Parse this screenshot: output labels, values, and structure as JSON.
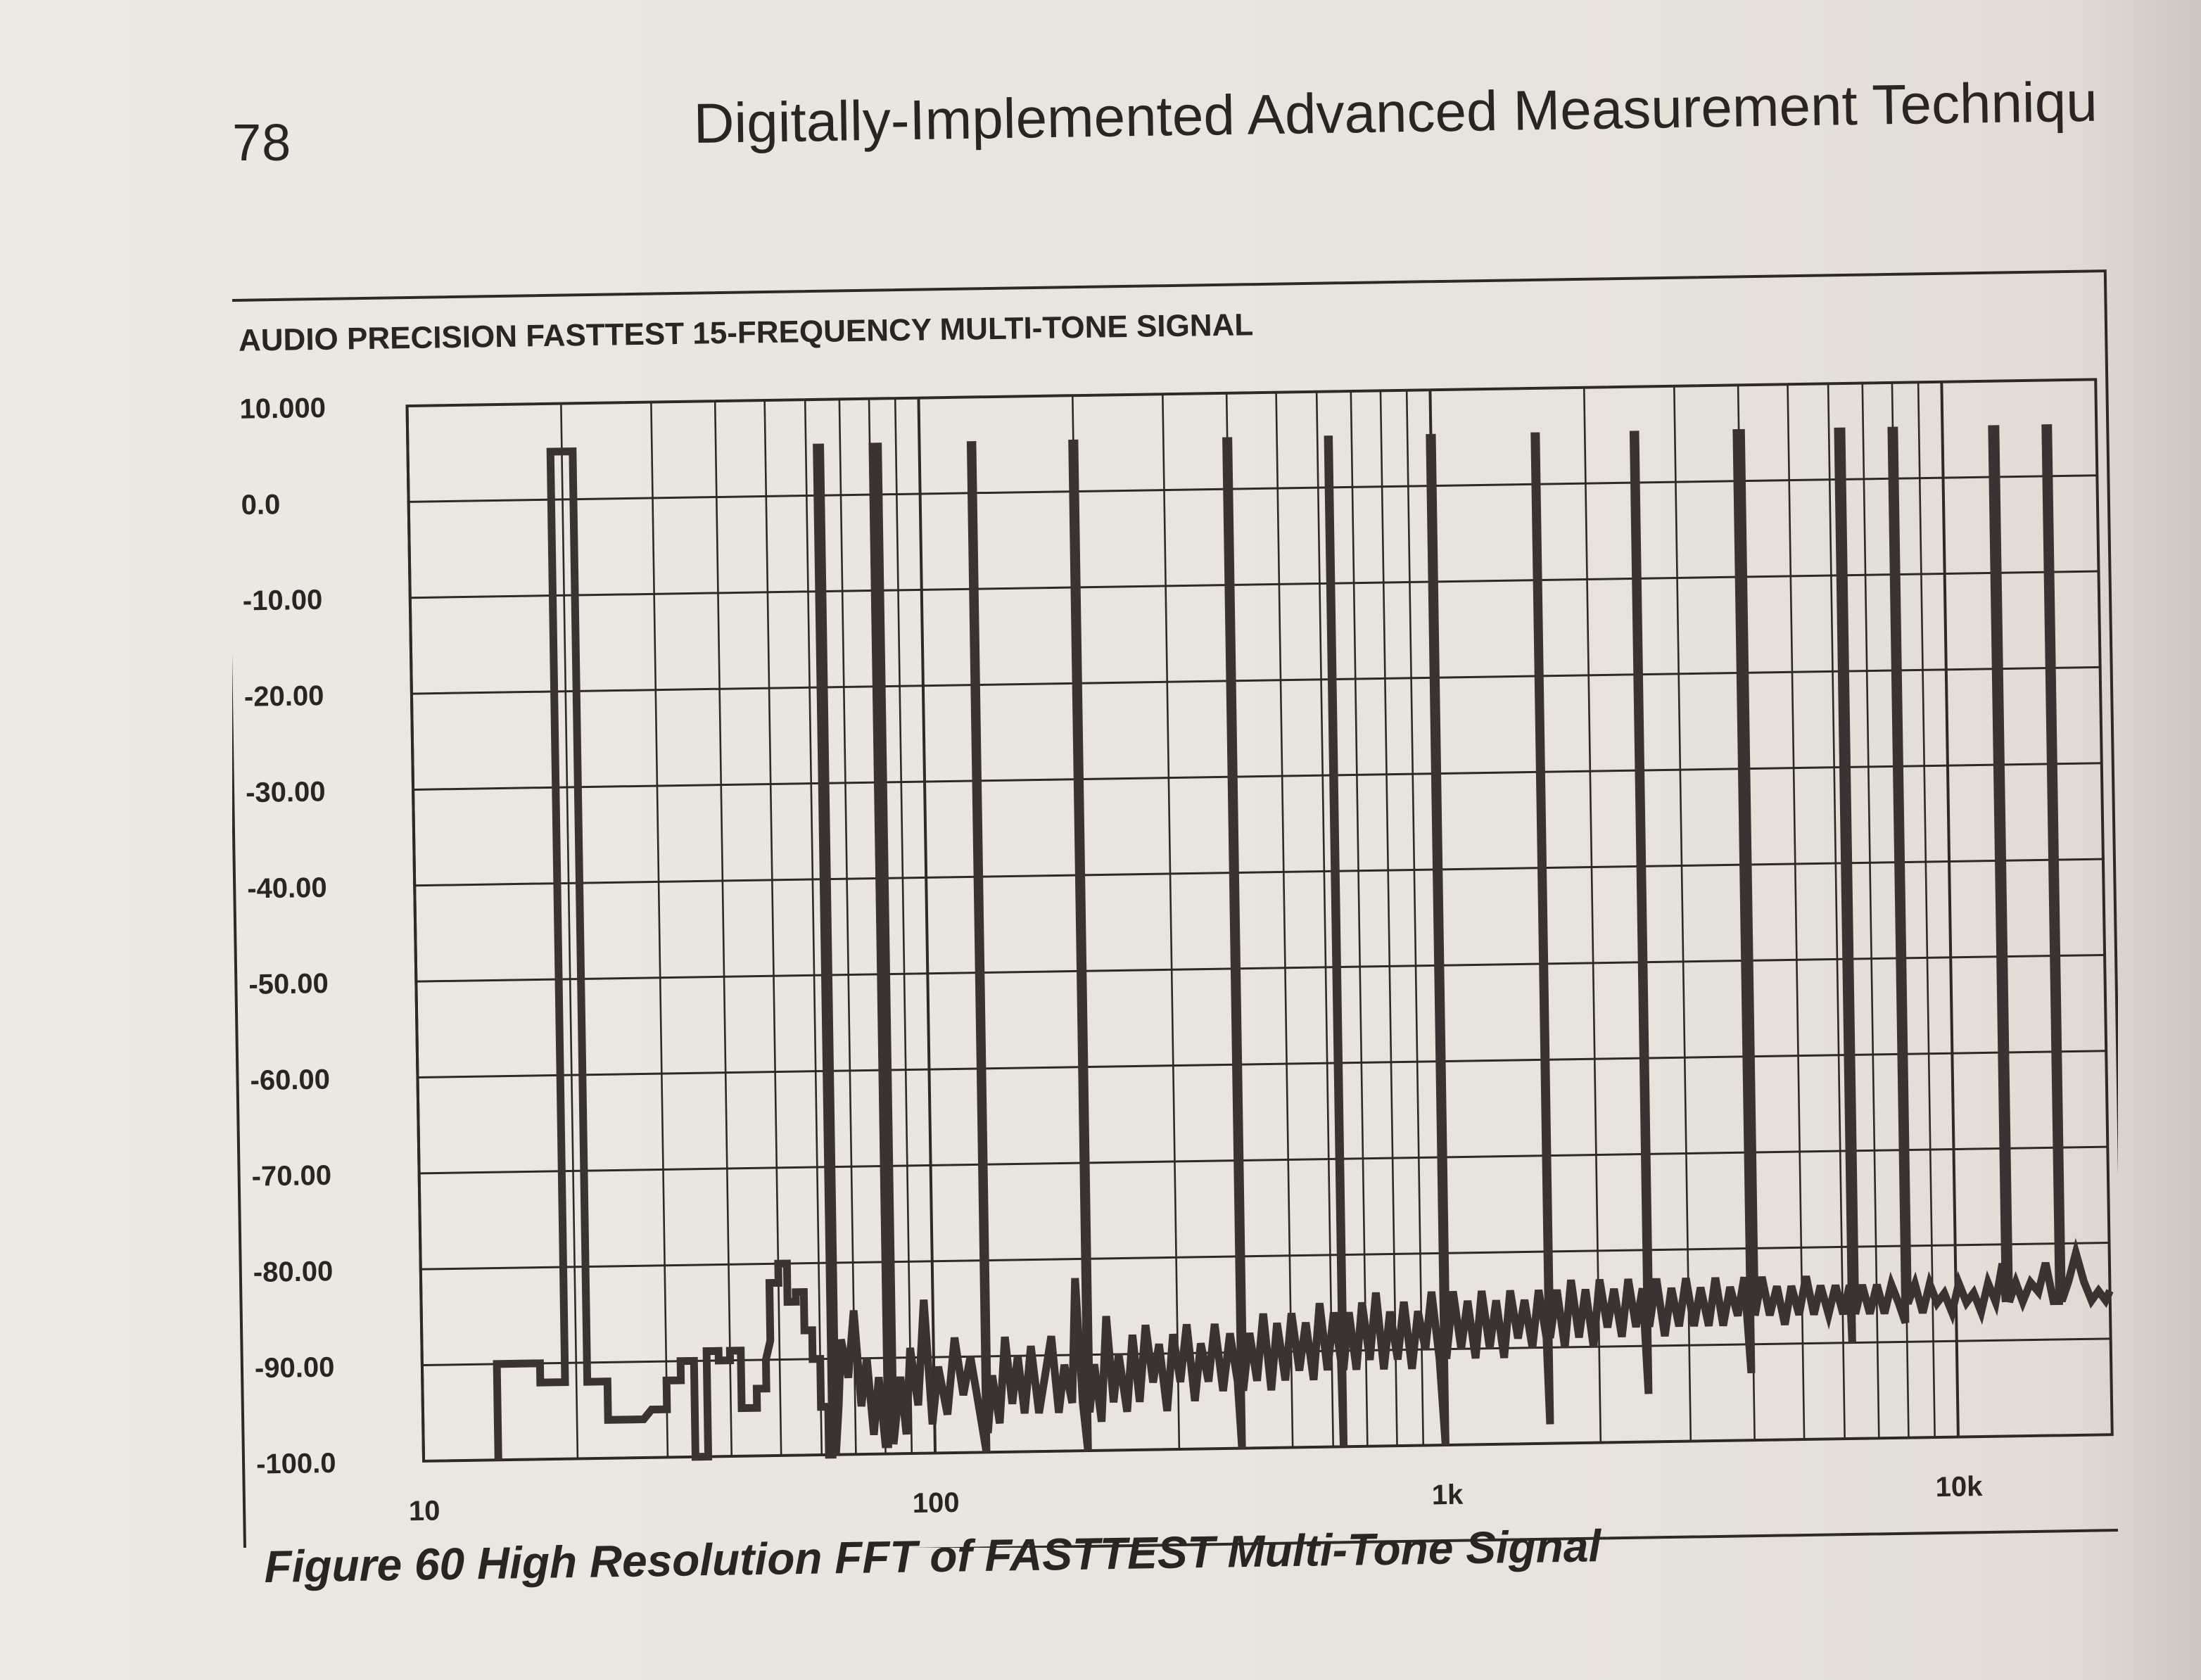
{
  "page": {
    "number": "78",
    "running_head": "Digitally-Implemented Advanced Measurement Techniqu",
    "caption": "Figure 60  High Resolution FFT of FASTTEST Multi-Tone Signal"
  },
  "colors": {
    "trace": "#3b3331",
    "grid": "#2f2926",
    "paper": "#ece8e2"
  },
  "chart_data": {
    "type": "line",
    "title": "AUDIO PRECISION   FASTTEST 15-FREQUENCY MULTI-TONE SIGNAL",
    "xlabel": "",
    "ylabel": "",
    "x_scale": "log",
    "xlim": [
      10,
      20000
    ],
    "ylim": [
      -100,
      10
    ],
    "grid": true,
    "legend": "none",
    "y_tick_labels": [
      "10.000",
      "0.0",
      "-10.00",
      "-20.00",
      "-30.00",
      "-40.00",
      "-50.00",
      "-60.00",
      "-70.00",
      "-80.00",
      "-90.00",
      "-100.0"
    ],
    "y_tick_values": [
      10,
      0,
      -10,
      -20,
      -30,
      -40,
      -50,
      -60,
      -70,
      -80,
      -90,
      -100
    ],
    "x_tick_labels": [
      "10",
      "100",
      "1k",
      "10k"
    ],
    "x_tick_values": [
      10,
      100,
      1000,
      10000
    ],
    "tone_frequencies": [
      20,
      63,
      82,
      126,
      200,
      400,
      630,
      1000,
      1600,
      2500,
      4000,
      6300,
      8000,
      12600,
      16000
    ],
    "tone_peak_level": 5,
    "series": [
      {
        "values": [
          [
            14,
            -100
          ],
          [
            14,
            -90
          ],
          [
            17,
            -90
          ],
          [
            17,
            -92
          ],
          [
            19,
            -92
          ],
          [
            19,
            5
          ],
          [
            21,
            5
          ],
          [
            21,
            -92
          ],
          [
            23,
            -92
          ],
          [
            23,
            -96
          ],
          [
            25,
            -96
          ],
          [
            27,
            -96
          ],
          [
            28,
            -95
          ],
          [
            30,
            -95
          ],
          [
            30,
            -92
          ],
          [
            32,
            -92
          ],
          [
            32,
            -90
          ],
          [
            34,
            -90
          ],
          [
            34,
            -100
          ],
          [
            36,
            -100
          ],
          [
            36,
            -89
          ],
          [
            38,
            -89
          ],
          [
            38,
            -90
          ],
          [
            40,
            -90
          ],
          [
            40,
            -89
          ],
          [
            42,
            -89
          ],
          [
            42,
            -95
          ],
          [
            45,
            -95
          ],
          [
            45,
            -93
          ],
          [
            47,
            -93
          ],
          [
            47,
            -90
          ],
          [
            48,
            -88
          ],
          [
            48,
            -82
          ],
          [
            50,
            -82
          ],
          [
            50,
            -80
          ],
          [
            52,
            -80
          ],
          [
            52,
            -84
          ],
          [
            54,
            -84
          ],
          [
            54,
            -83
          ],
          [
            56,
            -83
          ],
          [
            56,
            -87
          ],
          [
            58,
            -87
          ],
          [
            58,
            -90
          ],
          [
            60,
            -90
          ],
          [
            60,
            -95
          ],
          [
            62,
            -95
          ],
          [
            62,
            -100
          ],
          [
            63,
            -100
          ],
          [
            63,
            5
          ],
          [
            64,
            5
          ],
          [
            64,
            -100
          ],
          [
            65,
            -95
          ],
          [
            66,
            -88
          ],
          [
            68,
            -92
          ],
          [
            70,
            -85
          ],
          [
            72,
            -95
          ],
          [
            74,
            -90
          ],
          [
            76,
            -98
          ],
          [
            78,
            -92
          ],
          [
            80,
            -99
          ],
          [
            81,
            -99
          ],
          [
            81,
            5
          ],
          [
            83,
            5
          ],
          [
            83,
            -99
          ],
          [
            86,
            -92
          ],
          [
            88,
            -98
          ],
          [
            90,
            -89
          ],
          [
            93,
            -95
          ],
          [
            96,
            -84
          ],
          [
            99,
            -97
          ],
          [
            102,
            -91
          ],
          [
            106,
            -96
          ],
          [
            110,
            -88
          ],
          [
            114,
            -94
          ],
          [
            118,
            -90
          ],
          [
            122,
            -95
          ],
          [
            126,
            -100
          ],
          [
            126,
            5
          ],
          [
            127,
            5
          ],
          [
            127,
            -98
          ],
          [
            130,
            -92
          ],
          [
            134,
            -97
          ],
          [
            138,
            -88
          ],
          [
            142,
            -95
          ],
          [
            146,
            -90
          ],
          [
            150,
            -96
          ],
          [
            155,
            -89
          ],
          [
            160,
            -96
          ],
          [
            165,
            -92
          ],
          [
            170,
            -88
          ],
          [
            175,
            -96
          ],
          [
            180,
            -91
          ],
          [
            186,
            -95
          ],
          [
            190,
            -82
          ],
          [
            195,
            -95
          ],
          [
            199,
            -100
          ],
          [
            199,
            5
          ],
          [
            201,
            5
          ],
          [
            201,
            -96
          ],
          [
            206,
            -91
          ],
          [
            212,
            -97
          ],
          [
            218,
            -86
          ],
          [
            224,
            -95
          ],
          [
            230,
            -90
          ],
          [
            238,
            -96
          ],
          [
            245,
            -88
          ],
          [
            252,
            -95
          ],
          [
            260,
            -87
          ],
          [
            268,
            -93
          ],
          [
            276,
            -89
          ],
          [
            285,
            -96
          ],
          [
            294,
            -88
          ],
          [
            303,
            -93
          ],
          [
            313,
            -87
          ],
          [
            323,
            -95
          ],
          [
            333,
            -89
          ],
          [
            344,
            -93
          ],
          [
            355,
            -87
          ],
          [
            367,
            -94
          ],
          [
            380,
            -88
          ],
          [
            392,
            -93
          ],
          [
            398,
            -100
          ],
          [
            398,
            5
          ],
          [
            402,
            5
          ],
          [
            402,
            -94
          ],
          [
            415,
            -88
          ],
          [
            428,
            -93
          ],
          [
            442,
            -86
          ],
          [
            456,
            -94
          ],
          [
            470,
            -87
          ],
          [
            486,
            -93
          ],
          [
            502,
            -86
          ],
          [
            518,
            -92
          ],
          [
            535,
            -87
          ],
          [
            552,
            -93
          ],
          [
            570,
            -85
          ],
          [
            588,
            -92
          ],
          [
            607,
            -86
          ],
          [
            625,
            -91
          ],
          [
            629,
            -100
          ],
          [
            629,
            5
          ],
          [
            632,
            5
          ],
          [
            632,
            -92
          ],
          [
            650,
            -86
          ],
          [
            670,
            -92
          ],
          [
            690,
            -85
          ],
          [
            712,
            -91
          ],
          [
            735,
            -84
          ],
          [
            758,
            -92
          ],
          [
            782,
            -86
          ],
          [
            807,
            -91
          ],
          [
            833,
            -85
          ],
          [
            860,
            -92
          ],
          [
            887,
            -86
          ],
          [
            915,
            -90
          ],
          [
            944,
            -84
          ],
          [
            974,
            -91
          ],
          [
            995,
            -100
          ],
          [
            995,
            5
          ],
          [
            1005,
            5
          ],
          [
            1005,
            -91
          ],
          [
            1040,
            -84
          ],
          [
            1075,
            -90
          ],
          [
            1110,
            -85
          ],
          [
            1146,
            -91
          ],
          [
            1183,
            -84
          ],
          [
            1222,
            -90
          ],
          [
            1262,
            -85
          ],
          [
            1303,
            -91
          ],
          [
            1345,
            -84
          ],
          [
            1389,
            -89
          ],
          [
            1434,
            -85
          ],
          [
            1481,
            -90
          ],
          [
            1529,
            -84
          ],
          [
            1579,
            -89
          ],
          [
            1595,
            -98
          ],
          [
            1595,
            5
          ],
          [
            1605,
            5
          ],
          [
            1605,
            -89
          ],
          [
            1660,
            -84
          ],
          [
            1714,
            -90
          ],
          [
            1770,
            -83
          ],
          [
            1828,
            -89
          ],
          [
            1888,
            -84
          ],
          [
            1950,
            -90
          ],
          [
            2013,
            -83
          ],
          [
            2079,
            -88
          ],
          [
            2147,
            -84
          ],
          [
            2217,
            -89
          ],
          [
            2290,
            -83
          ],
          [
            2364,
            -88
          ],
          [
            2441,
            -84
          ],
          [
            2490,
            -95
          ],
          [
            2490,
            5
          ],
          [
            2510,
            5
          ],
          [
            2510,
            -88
          ],
          [
            2600,
            -83
          ],
          [
            2690,
            -89
          ],
          [
            2780,
            -84
          ],
          [
            2870,
            -88
          ],
          [
            2970,
            -83
          ],
          [
            3070,
            -88
          ],
          [
            3170,
            -84
          ],
          [
            3280,
            -88
          ],
          [
            3390,
            -83
          ],
          [
            3500,
            -88
          ],
          [
            3620,
            -84
          ],
          [
            3740,
            -87
          ],
          [
            3860,
            -83
          ],
          [
            3960,
            -93
          ],
          [
            3960,
            5
          ],
          [
            4040,
            5
          ],
          [
            4040,
            -87
          ],
          [
            4180,
            -83
          ],
          [
            4320,
            -87
          ],
          [
            4470,
            -84
          ],
          [
            4620,
            -88
          ],
          [
            4770,
            -84
          ],
          [
            4930,
            -87
          ],
          [
            5100,
            -83
          ],
          [
            5270,
            -87
          ],
          [
            5440,
            -84
          ],
          [
            5630,
            -87
          ],
          [
            5820,
            -84
          ],
          [
            6010,
            -87
          ],
          [
            6200,
            -84
          ],
          [
            6250,
            -90
          ],
          [
            6250,
            5
          ],
          [
            6350,
            5
          ],
          [
            6350,
            -87
          ],
          [
            6560,
            -84
          ],
          [
            6780,
            -87
          ],
          [
            7010,
            -84
          ],
          [
            7240,
            -87
          ],
          [
            7480,
            -84
          ],
          [
            7730,
            -86
          ],
          [
            7950,
            -88
          ],
          [
            7950,
            5
          ],
          [
            8050,
            5
          ],
          [
            8050,
            -86
          ],
          [
            8320,
            -84
          ],
          [
            8600,
            -87
          ],
          [
            8890,
            -84
          ],
          [
            9180,
            -86
          ],
          [
            9490,
            -85
          ],
          [
            9810,
            -87
          ],
          [
            10140,
            -84
          ],
          [
            10480,
            -86
          ],
          [
            10830,
            -85
          ],
          [
            11190,
            -87
          ],
          [
            11560,
            -84
          ],
          [
            11950,
            -86
          ],
          [
            12350,
            -82
          ],
          [
            12500,
            -86
          ],
          [
            12500,
            5
          ],
          [
            12700,
            5
          ],
          [
            12700,
            -86
          ],
          [
            13100,
            -84
          ],
          [
            13500,
            -86
          ],
          [
            14000,
            -84
          ],
          [
            14500,
            -85
          ],
          [
            15000,
            -82
          ],
          [
            15500,
            -86
          ],
          [
            15900,
            -86
          ],
          [
            15900,
            5
          ],
          [
            16100,
            5
          ],
          [
            16100,
            -86
          ],
          [
            16600,
            -84
          ],
          [
            17200,
            -81
          ],
          [
            17800,
            -84
          ],
          [
            18400,
            -86
          ],
          [
            19000,
            -85
          ],
          [
            19600,
            -86
          ],
          [
            20000,
            -85
          ]
        ]
      }
    ]
  }
}
